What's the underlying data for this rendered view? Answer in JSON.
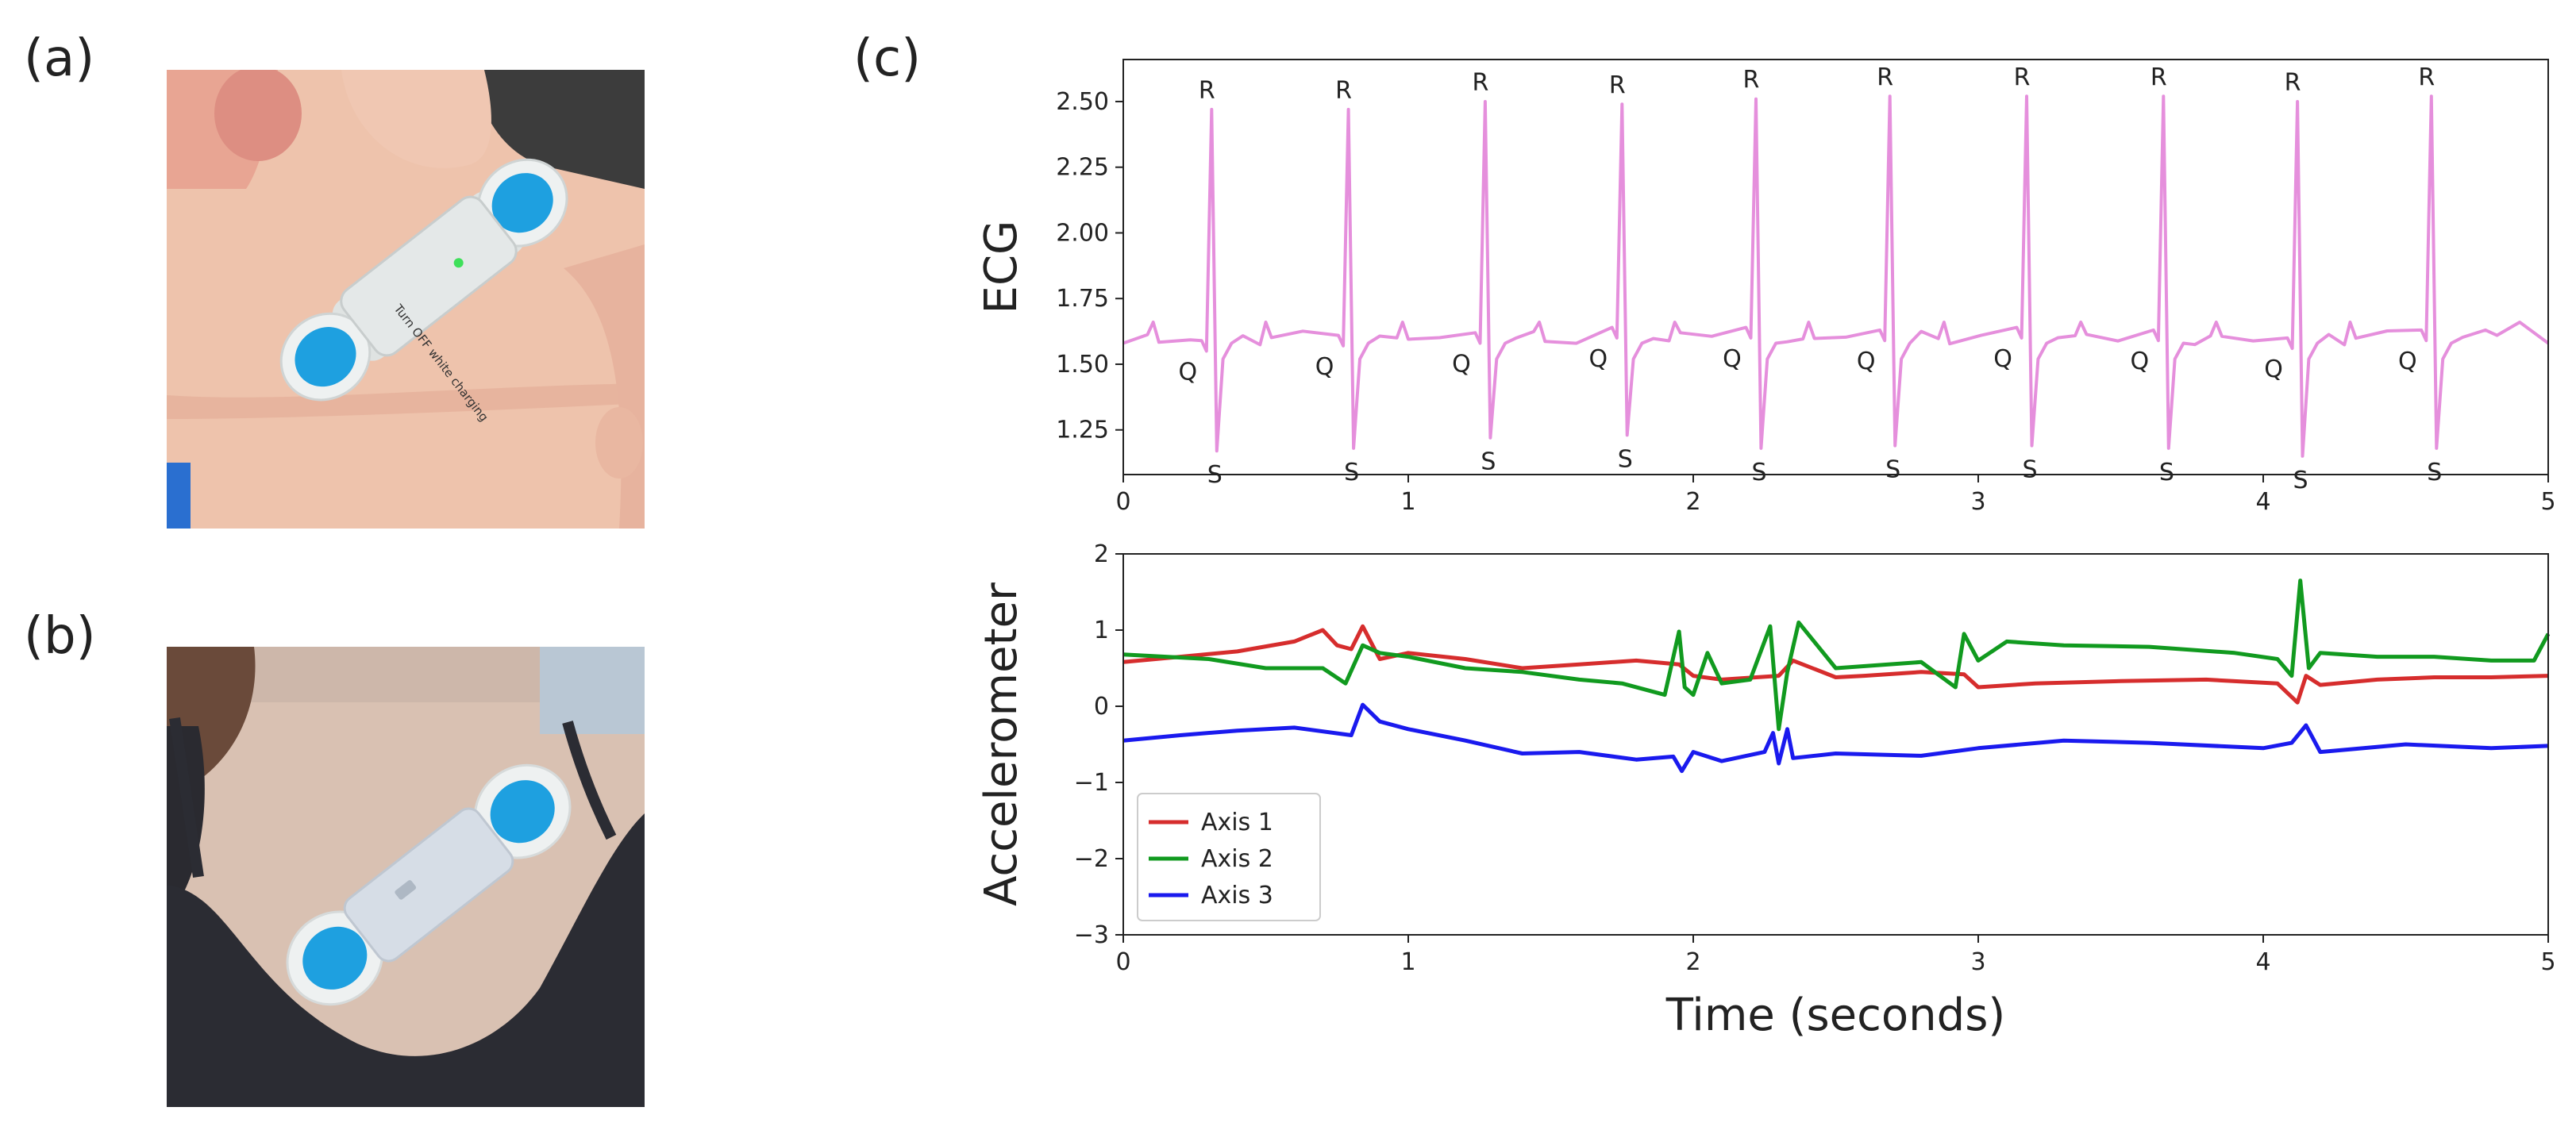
{
  "figure": {
    "panels": {
      "a": {
        "label": "(a)",
        "device_text": "Turn OFF white charging"
      },
      "b": {
        "label": "(b)"
      },
      "c": {
        "label": "(c)"
      }
    },
    "colors": {
      "ecg": "#e58fdc",
      "axis1": "#d62d2d",
      "axis2": "#119a1f",
      "axis3": "#1a1aee",
      "electrode": "#1ea0e0"
    }
  },
  "chart_data": [
    {
      "type": "line",
      "name": "ecg",
      "ylabel": "ECG",
      "xlim": [
        0,
        5
      ],
      "ylim": [
        1.08,
        2.66
      ],
      "xticks": [
        0,
        1,
        2,
        3,
        4,
        5
      ],
      "yticks": [
        1.25,
        1.5,
        1.75,
        2.0,
        2.25,
        2.5
      ],
      "ytick_labels": [
        "1.25",
        "1.50",
        "1.75",
        "2.00",
        "2.25",
        "2.50"
      ],
      "beats": [
        {
          "t": 0.31,
          "r": 2.47,
          "q": 1.55,
          "s": 1.17
        },
        {
          "t": 0.79,
          "r": 2.47,
          "q": 1.57,
          "s": 1.18
        },
        {
          "t": 1.27,
          "r": 2.5,
          "q": 1.58,
          "s": 1.22
        },
        {
          "t": 1.75,
          "r": 2.49,
          "q": 1.6,
          "s": 1.23
        },
        {
          "t": 2.22,
          "r": 2.51,
          "q": 1.6,
          "s": 1.18
        },
        {
          "t": 2.69,
          "r": 2.52,
          "q": 1.59,
          "s": 1.19
        },
        {
          "t": 3.17,
          "r": 2.52,
          "q": 1.6,
          "s": 1.19
        },
        {
          "t": 3.65,
          "r": 2.52,
          "q": 1.59,
          "s": 1.18
        },
        {
          "t": 4.12,
          "r": 2.5,
          "q": 1.56,
          "s": 1.15
        },
        {
          "t": 4.59,
          "r": 2.52,
          "q": 1.59,
          "s": 1.18
        }
      ],
      "peak_labels": {
        "r": "R",
        "q": "Q",
        "s": "S"
      }
    },
    {
      "type": "line",
      "name": "accelerometer",
      "ylabel": "Accelerometer",
      "xlabel": "Time (seconds)",
      "xlim": [
        0,
        5
      ],
      "ylim": [
        -3,
        2
      ],
      "xticks": [
        0,
        1,
        2,
        3,
        4,
        5
      ],
      "yticks": [
        -3,
        -2,
        -1,
        0,
        1,
        2
      ],
      "ytick_labels": [
        "−3",
        "−2",
        "−1",
        "0",
        "1",
        "2"
      ],
      "legend_position": "lower-left",
      "series": [
        {
          "name": "Axis 1",
          "x": [
            0,
            0.2,
            0.4,
            0.6,
            0.7,
            0.75,
            0.8,
            0.84,
            0.9,
            1.0,
            1.2,
            1.4,
            1.6,
            1.8,
            1.95,
            2.0,
            2.1,
            2.3,
            2.35,
            2.5,
            2.6,
            2.8,
            2.95,
            3.0,
            3.2,
            3.5,
            3.8,
            4.05,
            4.12,
            4.15,
            4.2,
            4.4,
            4.6,
            4.8,
            5.0
          ],
          "y": [
            0.58,
            0.65,
            0.72,
            0.85,
            1.0,
            0.8,
            0.75,
            1.05,
            0.62,
            0.7,
            0.62,
            0.5,
            0.55,
            0.6,
            0.55,
            0.4,
            0.35,
            0.4,
            0.6,
            0.38,
            0.4,
            0.45,
            0.42,
            0.25,
            0.3,
            0.33,
            0.35,
            0.3,
            0.05,
            0.4,
            0.28,
            0.35,
            0.38,
            0.38,
            0.4
          ]
        },
        {
          "name": "Axis 2",
          "x": [
            0,
            0.3,
            0.5,
            0.7,
            0.78,
            0.84,
            0.9,
            1.0,
            1.2,
            1.4,
            1.6,
            1.75,
            1.9,
            1.95,
            1.97,
            2.0,
            2.05,
            2.1,
            2.2,
            2.27,
            2.3,
            2.33,
            2.37,
            2.5,
            2.8,
            2.92,
            2.95,
            3.0,
            3.1,
            3.3,
            3.6,
            3.9,
            4.05,
            4.1,
            4.13,
            4.16,
            4.2,
            4.4,
            4.6,
            4.8,
            4.95,
            5.0
          ],
          "y": [
            0.68,
            0.62,
            0.5,
            0.5,
            0.3,
            0.8,
            0.7,
            0.65,
            0.5,
            0.45,
            0.35,
            0.3,
            0.15,
            0.98,
            0.25,
            0.15,
            0.7,
            0.3,
            0.35,
            1.05,
            -0.3,
            0.45,
            1.1,
            0.5,
            0.58,
            0.25,
            0.95,
            0.6,
            0.85,
            0.8,
            0.78,
            0.7,
            0.62,
            0.4,
            1.65,
            0.5,
            0.7,
            0.65,
            0.65,
            0.6,
            0.6,
            0.95
          ]
        },
        {
          "name": "Axis 3",
          "x": [
            0,
            0.2,
            0.4,
            0.6,
            0.8,
            0.84,
            0.9,
            1.0,
            1.2,
            1.4,
            1.6,
            1.8,
            1.93,
            1.96,
            2.0,
            2.1,
            2.25,
            2.28,
            2.3,
            2.33,
            2.35,
            2.5,
            2.8,
            3.0,
            3.3,
            3.6,
            4.0,
            4.1,
            4.15,
            4.2,
            4.5,
            4.8,
            5.0
          ],
          "y": [
            -0.45,
            -0.38,
            -0.32,
            -0.28,
            -0.38,
            0.02,
            -0.2,
            -0.3,
            -0.45,
            -0.62,
            -0.6,
            -0.7,
            -0.66,
            -0.85,
            -0.6,
            -0.72,
            -0.6,
            -0.35,
            -0.75,
            -0.3,
            -0.68,
            -0.62,
            -0.65,
            -0.55,
            -0.45,
            -0.48,
            -0.55,
            -0.48,
            -0.25,
            -0.6,
            -0.5,
            -0.55,
            -0.52
          ]
        }
      ]
    }
  ]
}
